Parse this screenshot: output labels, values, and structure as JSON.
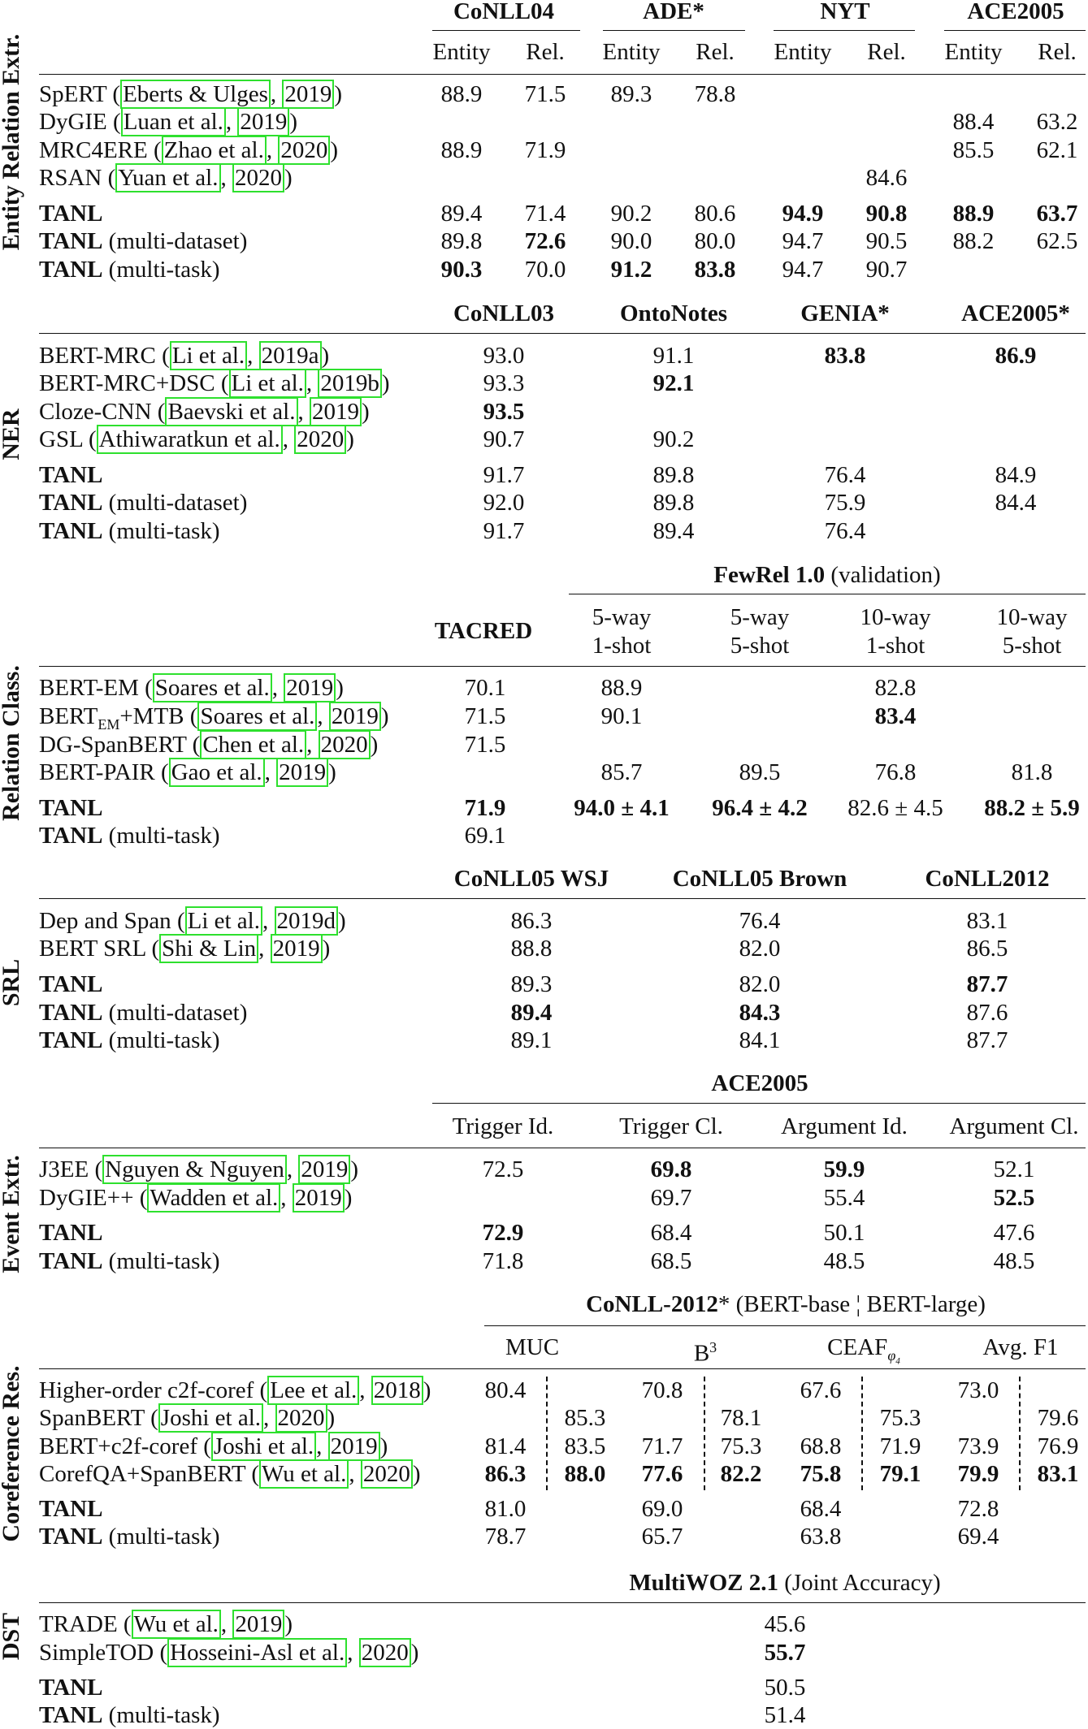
{
  "sections": [
    {
      "id": "re",
      "side_label": "Entity Relation Extr.",
      "header_groups": [
        "CoNLL04",
        "ADE*",
        "NYT",
        "ACE2005"
      ],
      "subheaders": [
        "Entity",
        "Rel.",
        "Entity",
        "Rel.",
        "Entity",
        "Rel.",
        "Entity",
        "Rel."
      ],
      "rows": [
        {
          "name": "SpERT",
          "cite_a": "Eberts & Ulges",
          "cite_b": "2019",
          "vals": [
            "88.9",
            "71.5",
            "89.3",
            "78.8",
            "",
            "",
            "",
            ""
          ]
        },
        {
          "name": "DyGIE",
          "cite_a": "Luan et al.",
          "cite_b": "2019",
          "vals": [
            "",
            "",
            "",
            "",
            "",
            "",
            "88.4",
            "63.2"
          ]
        },
        {
          "name": "MRC4ERE",
          "cite_a": "Zhao et al.",
          "cite_b": "2020",
          "vals": [
            "88.9",
            "71.9",
            "",
            "",
            "",
            "",
            "85.5",
            "62.1"
          ]
        },
        {
          "name": "RSAN",
          "cite_a": "Yuan et al.",
          "cite_b": "2020",
          "vals": [
            "",
            "",
            "",
            "",
            "",
            "84.6",
            "",
            ""
          ]
        },
        {
          "name": "TANL",
          "suffix": "",
          "vals": [
            "89.4",
            "71.4",
            "90.2",
            "80.6",
            "94.9",
            "90.8",
            "88.9",
            "63.7"
          ]
        },
        {
          "name": "TANL",
          "suffix": "(multi-dataset)",
          "vals": [
            "89.8",
            "72.6",
            "90.0",
            "80.0",
            "94.7",
            "90.5",
            "88.2",
            "62.5"
          ]
        },
        {
          "name": "TANL",
          "suffix": "(multi-task)",
          "vals": [
            "90.3",
            "70.0",
            "91.2",
            "83.8",
            "94.7",
            "90.7",
            "",
            ""
          ]
        }
      ]
    },
    {
      "id": "ner",
      "side_label": "NER",
      "header_groups": [
        "CoNLL03",
        "OntoNotes",
        "GENIA*",
        "ACE2005*"
      ],
      "rows": [
        {
          "name": "BERT-MRC",
          "cite_a": "Li et al.",
          "cite_b": "2019a",
          "vals": [
            "93.0",
            "91.1",
            "83.8",
            "86.9"
          ]
        },
        {
          "name": "BERT-MRC+DSC",
          "cite_a": "Li et al.",
          "cite_b": "2019b",
          "vals": [
            "93.3",
            "92.1",
            "",
            ""
          ]
        },
        {
          "name": "Cloze-CNN",
          "cite_a": "Baevski et al.",
          "cite_b": "2019",
          "vals": [
            "93.5",
            "",
            "",
            ""
          ]
        },
        {
          "name": "GSL",
          "cite_a": "Athiwaratkun et al.",
          "cite_b": "2020",
          "vals": [
            "90.7",
            "90.2",
            "",
            ""
          ]
        },
        {
          "name": "TANL",
          "suffix": "",
          "vals": [
            "91.7",
            "89.8",
            "76.4",
            "84.9"
          ]
        },
        {
          "name": "TANL",
          "suffix": "(multi-dataset)",
          "vals": [
            "92.0",
            "89.8",
            "75.9",
            "84.4"
          ]
        },
        {
          "name": "TANL",
          "suffix": "(multi-task)",
          "vals": [
            "91.7",
            "89.4",
            "76.4",
            ""
          ]
        }
      ]
    },
    {
      "id": "rc",
      "side_label": "Relation Class.",
      "group_bold": "FewRel 1.0",
      "group_normal": "(validation)",
      "tacred": "TACRED",
      "sub_top": [
        "5-way",
        "5-way",
        "10-way",
        "10-way"
      ],
      "sub_bot": [
        "1-shot",
        "5-shot",
        "1-shot",
        "5-shot"
      ],
      "rows": [
        {
          "name": "BERT-EM",
          "cite_a": "Soares et al.",
          "cite_b": "2019",
          "vals": [
            "70.1",
            "88.9",
            "",
            "82.8",
            ""
          ]
        },
        {
          "name": "BERT",
          "sub": "EM",
          "tail": "+MTB",
          "cite_a": "Soares et al.",
          "cite_b": "2019",
          "vals": [
            "71.5",
            "90.1",
            "",
            "83.4",
            ""
          ]
        },
        {
          "name": "DG-SpanBERT",
          "cite_a": "Chen et al.",
          "cite_b": "2020",
          "vals": [
            "71.5",
            "",
            "",
            "",
            ""
          ]
        },
        {
          "name": "BERT-PAIR",
          "cite_a": "Gao et al.",
          "cite_b": "2019",
          "vals": [
            "",
            "85.7",
            "89.5",
            "76.8",
            "81.8"
          ]
        },
        {
          "name": "TANL",
          "suffix": "",
          "vals": [
            "71.9",
            "94.0 ± 4.1",
            "96.4 ± 4.2",
            "82.6 ± 4.5",
            "88.2 ± 5.9"
          ]
        },
        {
          "name": "TANL",
          "suffix": "(multi-task)",
          "vals": [
            "69.1",
            "",
            "",
            "",
            ""
          ]
        }
      ]
    },
    {
      "id": "srl",
      "side_label": "SRL",
      "header_groups": [
        "CoNLL05 WSJ",
        "CoNLL05 Brown",
        "CoNLL2012"
      ],
      "rows": [
        {
          "name": "Dep and Span",
          "cite_a": "Li et al.",
          "cite_b": "2019d",
          "vals": [
            "86.3",
            "76.4",
            "83.1"
          ]
        },
        {
          "name": "BERT SRL",
          "cite_a": "Shi & Lin",
          "cite_b": "2019",
          "vals": [
            "88.8",
            "82.0",
            "86.5"
          ]
        },
        {
          "name": "TANL",
          "suffix": "",
          "vals": [
            "89.3",
            "82.0",
            "87.7"
          ]
        },
        {
          "name": "TANL",
          "suffix": "(multi-dataset)",
          "vals": [
            "89.4",
            "84.3",
            "87.6"
          ]
        },
        {
          "name": "TANL",
          "suffix": "(multi-task)",
          "vals": [
            "89.1",
            "84.1",
            "87.7"
          ]
        }
      ]
    },
    {
      "id": "ee",
      "side_label": "Event Extr.",
      "group": "ACE2005",
      "subheaders": [
        "Trigger Id.",
        "Trigger Cl.",
        "Argument Id.",
        "Argument Cl."
      ],
      "rows": [
        {
          "name": "J3EE",
          "cite_a": "Nguyen & Nguyen",
          "cite_b": "2019",
          "vals": [
            "72.5",
            "69.8",
            "59.9",
            "52.1"
          ]
        },
        {
          "name": "DyGIE++",
          "cite_a": "Wadden et al.",
          "cite_b": "2019",
          "vals": [
            "",
            "69.7",
            "55.4",
            "52.5"
          ]
        },
        {
          "name": "TANL",
          "suffix": "",
          "vals": [
            "72.9",
            "68.4",
            "50.1",
            "47.6"
          ]
        },
        {
          "name": "TANL",
          "suffix": "(multi-task)",
          "vals": [
            "71.8",
            "68.5",
            "48.5",
            "48.5"
          ]
        }
      ]
    },
    {
      "id": "coref",
      "side_label": "Coreference Res.",
      "group_bold": "CoNLL-2012",
      "group_star": "*",
      "group_normal_a": "(BERT-base",
      "group_normal_b": "BERT-large)",
      "subheaders": [
        "MUC",
        "B",
        "CEAF",
        "Avg. F1"
      ],
      "b_sup": "3",
      "ceaf_sub": "φ",
      "ceaf_sub2": "4",
      "rows": [
        {
          "name": "Higher-order c2f-coref",
          "cite_a": "Lee et al.",
          "cite_b": "2018",
          "vals": [
            "80.4",
            "",
            "70.8",
            "",
            "67.6",
            "",
            "73.0",
            ""
          ]
        },
        {
          "name": "SpanBERT",
          "cite_a": "Joshi et al.",
          "cite_b": "2020",
          "vals": [
            "",
            "85.3",
            "",
            "78.1",
            "",
            "75.3",
            "",
            "79.6"
          ]
        },
        {
          "name": "BERT+c2f-coref",
          "cite_a": "Joshi et al.",
          "cite_b": "2019",
          "vals": [
            "81.4",
            "83.5",
            "71.7",
            "75.3",
            "68.8",
            "71.9",
            "73.9",
            "76.9"
          ]
        },
        {
          "name": "CorefQA+SpanBERT",
          "cite_a": "Wu et al.",
          "cite_b": "2020",
          "vals": [
            "86.3",
            "88.0",
            "77.6",
            "82.2",
            "75.8",
            "79.1",
            "79.9",
            "83.1"
          ]
        },
        {
          "name": "TANL",
          "suffix": "",
          "vals": [
            "81.0",
            "",
            "69.0",
            "",
            "68.4",
            "",
            "72.8",
            ""
          ]
        },
        {
          "name": "TANL",
          "suffix": "(multi-task)",
          "vals": [
            "78.7",
            "",
            "65.7",
            "",
            "63.8",
            "",
            "69.4",
            ""
          ]
        }
      ]
    },
    {
      "id": "dst",
      "side_label": "DST",
      "group_bold": "MultiWOZ 2.1",
      "group_normal": "(Joint Accuracy)",
      "rows": [
        {
          "name": "TRADE",
          "cite_a": "Wu et al.",
          "cite_b": "2019",
          "vals": [
            "45.6"
          ]
        },
        {
          "name": "SimpleTOD",
          "cite_a": "Hosseini-Asl et al.",
          "cite_b": "2020",
          "vals": [
            "55.7"
          ]
        },
        {
          "name": "TANL",
          "suffix": "",
          "vals": [
            "50.5"
          ]
        },
        {
          "name": "TANL",
          "suffix": "(multi-task)",
          "vals": [
            "51.4"
          ]
        }
      ]
    }
  ]
}
